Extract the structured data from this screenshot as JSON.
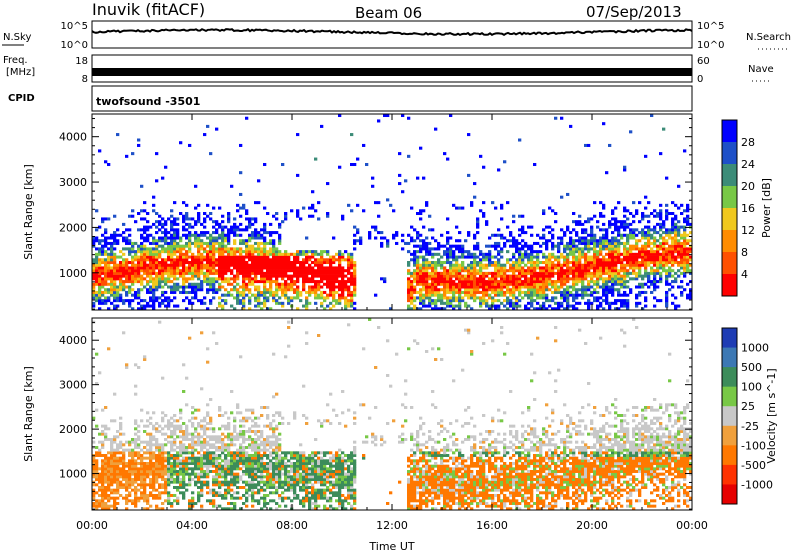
{
  "header": {
    "station": "Inuvik (fitACF)",
    "beam": "Beam 06",
    "date": "07/Sep/2013"
  },
  "strip_labels": {
    "nsky": "N.Sky",
    "nsky_ticks": [
      "10^5",
      "10^0"
    ],
    "nsearch": "N.Search",
    "nsearch_ticks": [
      "10^5",
      "10^0"
    ],
    "freq_line1": "Freq.",
    "freq_line2": "[MHz]",
    "freq_ticks": [
      "18",
      "8"
    ],
    "nave": "Nave",
    "nave_ticks": [
      "60",
      "0"
    ],
    "cpid": "CPID",
    "cpid_value": "twofsound -3501"
  },
  "chart_data": [
    {
      "type": "heatmap",
      "panel": "power",
      "ylabel": "Slant Range [km]",
      "xlabel": "",
      "x_ticks": [
        "00:00",
        "04:00",
        "08:00",
        "12:00",
        "16:00",
        "20:00",
        "00:00"
      ],
      "y_ticks": [
        "1000",
        "2000",
        "3000",
        "4000"
      ],
      "ylim": [
        180,
        4500
      ],
      "xlim_hours": [
        0,
        24
      ],
      "colorbar_label": "Power [dB]",
      "colorbar_ticks": [
        "4",
        "8",
        "12",
        "16",
        "20",
        "24",
        "28"
      ],
      "colorbar_colors": [
        "#0000ff",
        "#1e50c8",
        "#3c8c78",
        "#78c846",
        "#f0c81e",
        "#ff8c00",
        "#ff5000",
        "#ff0000"
      ]
    },
    {
      "type": "heatmap",
      "panel": "velocity",
      "ylabel": "Slant Range [km]",
      "xlabel": "Time UT",
      "x_ticks": [
        "00:00",
        "04:00",
        "08:00",
        "12:00",
        "16:00",
        "20:00",
        "00:00"
      ],
      "y_ticks": [
        "1000",
        "2000",
        "3000",
        "4000"
      ],
      "ylim": [
        180,
        4500
      ],
      "xlim_hours": [
        0,
        24
      ],
      "colorbar_label": "Velocity [m s^-1]",
      "colorbar_ticks": [
        "1000",
        "500",
        "100",
        "25",
        "-25",
        "-100",
        "-500",
        "-1000"
      ],
      "colorbar_colors": [
        "#1e3cb4",
        "#3c78b4",
        "#3c8c5a",
        "#78c846",
        "#c8c8c8",
        "#f0a03c",
        "#ff7800",
        "#ff3200",
        "#e60000"
      ]
    }
  ]
}
